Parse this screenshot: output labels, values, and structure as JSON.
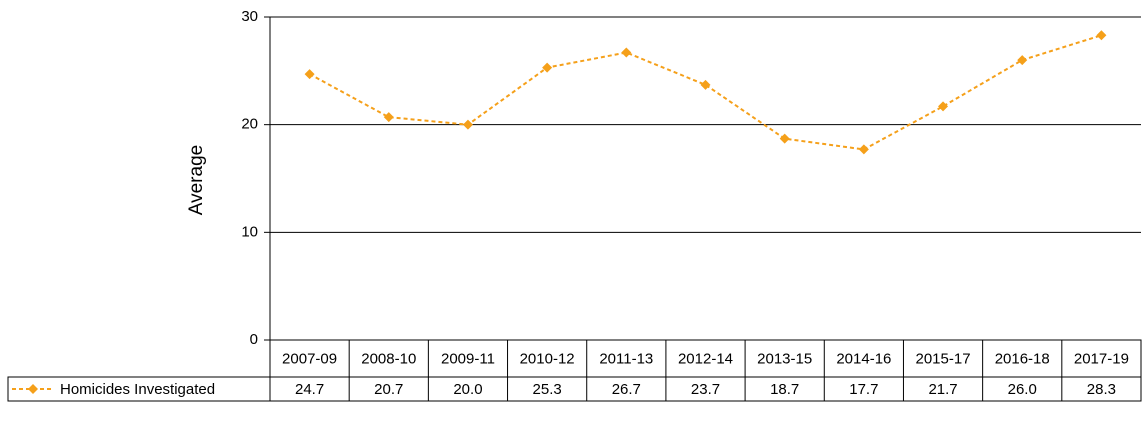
{
  "chart_data": {
    "type": "line",
    "ylabel": "Average",
    "categories": [
      "2007-09",
      "2008-10",
      "2009-11",
      "2010-12",
      "2011-13",
      "2012-14",
      "2013-15",
      "2014-16",
      "2015-17",
      "2016-18",
      "2017-19"
    ],
    "series": [
      {
        "name": "Homicides Investigated",
        "color": "#f5a01a",
        "values": [
          24.7,
          20.7,
          20.0,
          25.3,
          26.7,
          23.7,
          18.7,
          17.7,
          21.7,
          26.0,
          28.3
        ],
        "value_labels": [
          "24.7",
          "20.7",
          "20.0",
          "25.3",
          "26.7",
          "23.7",
          "18.7",
          "17.7",
          "21.7",
          "26.0",
          "28.3"
        ]
      }
    ],
    "ylim": [
      0,
      30
    ],
    "yticks": [
      0,
      10,
      20,
      30
    ],
    "grid": true
  }
}
